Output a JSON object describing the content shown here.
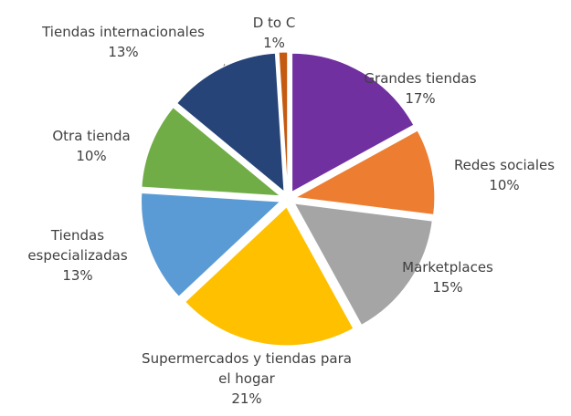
{
  "chart_data": {
    "type": "pie",
    "categories": [
      "Grandes tiendas",
      "Redes sociales",
      "Marketplaces",
      "Supermercados y tiendas para el hogar",
      "Tiendas especializadas",
      "Otra tienda",
      "Tiendas internacionales",
      "D to C"
    ],
    "values": [
      17,
      10,
      15,
      21,
      13,
      10,
      13,
      1
    ],
    "value_labels": [
      "17%",
      "10%",
      "15%",
      "21%",
      "13%",
      "10%",
      "13%",
      "1%"
    ],
    "colors": [
      "#7030a0",
      "#ed7d31",
      "#a5a5a5",
      "#ffc000",
      "#5b9bd5",
      "#70ad47",
      "#264478",
      "#c55a11"
    ]
  }
}
